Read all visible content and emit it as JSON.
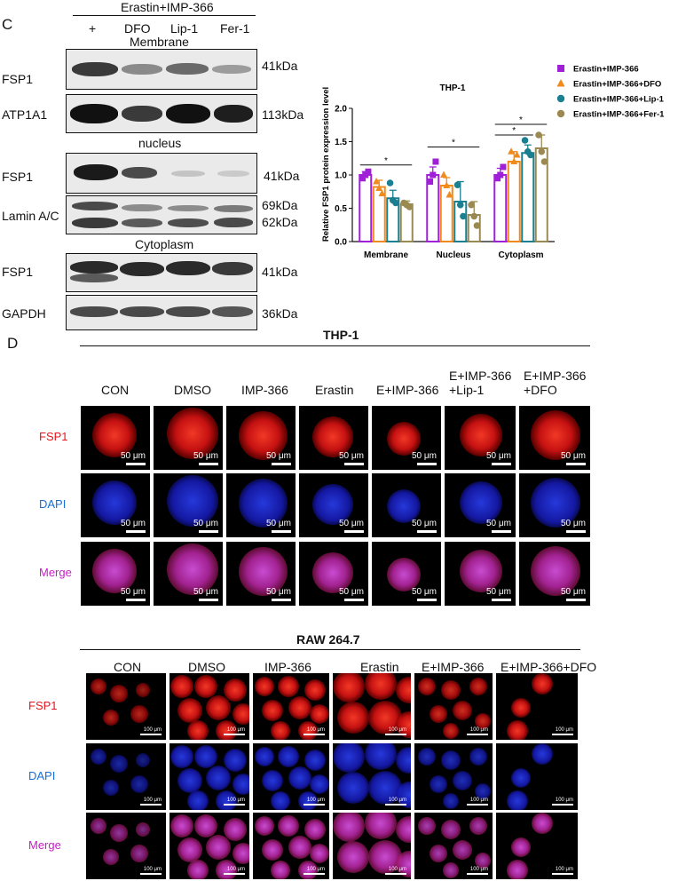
{
  "panel_c": {
    "letter": "C",
    "header_treatment": "Erastin+IMP-366",
    "lanes": [
      "+",
      "DFO",
      "Lip-1",
      "Fer-1"
    ],
    "sections": {
      "membrane": "Membrane",
      "nucleus": "nucleus",
      "cytoplasm": "Cytoplasm"
    },
    "blots": [
      {
        "label": "FSP1",
        "kda": "41kDa"
      },
      {
        "label": "ATP1A1",
        "kda": "113kDa"
      },
      {
        "label": "FSP1",
        "kda": "41kDa"
      },
      {
        "label": "Lamin A/C",
        "kda": "69kDa",
        "kda2": "62kDa"
      },
      {
        "label": "FSP1",
        "kda": "41kDa"
      },
      {
        "label": "GAPDH",
        "kda": "36kDa"
      }
    ]
  },
  "chart_data": {
    "type": "bar",
    "title": "THP-1",
    "ylabel": "Relative FSP1 protein expression level",
    "xlabel": "",
    "categories": [
      "Membrane",
      "Nucleus",
      "Cytoplasm"
    ],
    "ylim": [
      0,
      2.0
    ],
    "yticks": [
      0.0,
      0.5,
      1.0,
      1.5,
      2.0
    ],
    "ytick_labels": [
      "0.0",
      "0.5",
      "1.0",
      "1.5",
      "2.0"
    ],
    "legend_position": "top-right",
    "series": [
      {
        "name": "Erastin+IMP-366",
        "color": "#a020d8",
        "marker": "square",
        "values": [
          1.0,
          1.0,
          1.0
        ],
        "errors": [
          0.05,
          0.12,
          0.1
        ],
        "points": [
          [
            0.95,
            1.0,
            1.05
          ],
          [
            0.9,
            1.0,
            1.2
          ],
          [
            0.95,
            1.0,
            1.12
          ]
        ]
      },
      {
        "name": "Erastin+IMP-366+DFO",
        "color": "#f08a1c",
        "marker": "triangle",
        "values": [
          0.82,
          0.84,
          1.2
        ],
        "errors": [
          0.1,
          0.12,
          0.15
        ],
        "points": [
          [
            0.9,
            0.8,
            0.72
          ],
          [
            1.0,
            0.84,
            0.7
          ],
          [
            1.35,
            1.2,
            1.3
          ]
        ]
      },
      {
        "name": "Erastin+IMP-366+Lip-1",
        "color": "#1a7f90",
        "marker": "circle",
        "values": [
          0.65,
          0.6,
          1.33
        ],
        "errors": [
          0.12,
          0.3,
          0.12
        ],
        "points": [
          [
            0.88,
            0.62,
            0.58
          ],
          [
            0.85,
            0.55,
            0.38
          ],
          [
            1.52,
            1.35,
            1.3
          ]
        ]
      },
      {
        "name": "Erastin+IMP-366+Fer-1",
        "color": "#9a8a52",
        "marker": "circle",
        "values": [
          0.56,
          0.4,
          1.4
        ],
        "errors": [
          0.05,
          0.2,
          0.2
        ],
        "points": [
          [
            0.58,
            0.55,
            0.52
          ],
          [
            0.55,
            0.38,
            0.24
          ],
          [
            1.6,
            1.35,
            1.2
          ]
        ]
      }
    ],
    "significance_label": "*"
  },
  "panel_d": {
    "letter": "D",
    "thp1": {
      "title": "THP-1",
      "columns": [
        "CON",
        "DMSO",
        "IMP-366",
        "Erastin",
        "E+IMP-366",
        "E+IMP-366\n+Lip-1",
        "E+IMP-366\n+DFO"
      ],
      "rows": [
        "FSP1",
        "DAPI",
        "Merge"
      ],
      "scale": "50 μm"
    },
    "raw": {
      "title": "RAW  264.7",
      "columns": [
        "CON",
        "DMSO",
        "IMP-366",
        "Erastin",
        "E+IMP-366",
        "E+IMP-366+DFO"
      ],
      "rows": [
        "FSP1",
        "DAPI",
        "Merge"
      ],
      "scale": "100 μm"
    },
    "colors": {
      "fsp1": "#e8141c",
      "dapi": "#1a6fd6",
      "merge": "#c31fc4"
    }
  }
}
